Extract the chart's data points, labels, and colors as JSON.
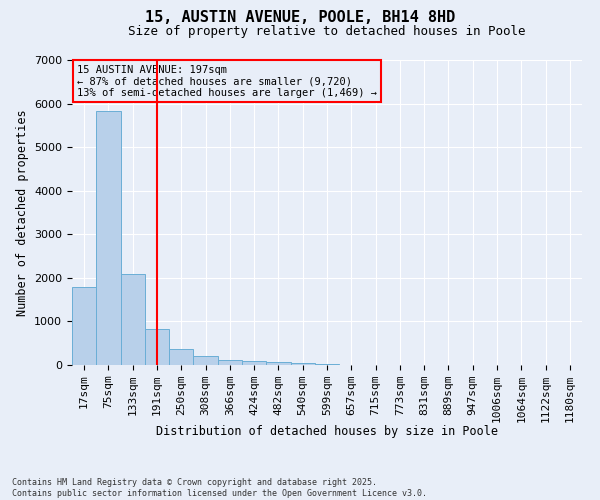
{
  "title": "15, AUSTIN AVENUE, POOLE, BH14 8HD",
  "subtitle": "Size of property relative to detached houses in Poole",
  "xlabel": "Distribution of detached houses by size in Poole",
  "ylabel": "Number of detached properties",
  "bar_labels": [
    "17sqm",
    "75sqm",
    "133sqm",
    "191sqm",
    "250sqm",
    "308sqm",
    "366sqm",
    "424sqm",
    "482sqm",
    "540sqm",
    "599sqm",
    "657sqm",
    "715sqm",
    "773sqm",
    "831sqm",
    "889sqm",
    "947sqm",
    "1006sqm",
    "1064sqm",
    "1122sqm",
    "1180sqm"
  ],
  "bar_values": [
    1800,
    5820,
    2090,
    830,
    360,
    200,
    115,
    90,
    80,
    55,
    20,
    10,
    5,
    3,
    2,
    2,
    1,
    1,
    1,
    1,
    1
  ],
  "bar_color": "#b8d0ea",
  "bar_edgecolor": "#6aaed6",
  "vline_x": 3.0,
  "vline_color": "red",
  "annotation_title": "15 AUSTIN AVENUE: 197sqm",
  "annotation_line1": "← 87% of detached houses are smaller (9,720)",
  "annotation_line2": "13% of semi-detached houses are larger (1,469) →",
  "annotation_box_color": "red",
  "background_color": "#e8eef8",
  "ylim": [
    0,
    7000
  ],
  "yticks": [
    0,
    1000,
    2000,
    3000,
    4000,
    5000,
    6000,
    7000
  ],
  "footer1": "Contains HM Land Registry data © Crown copyright and database right 2025.",
  "footer2": "Contains public sector information licensed under the Open Government Licence v3.0.",
  "grid_color": "#ffffff",
  "title_fontsize": 11,
  "subtitle_fontsize": 9
}
